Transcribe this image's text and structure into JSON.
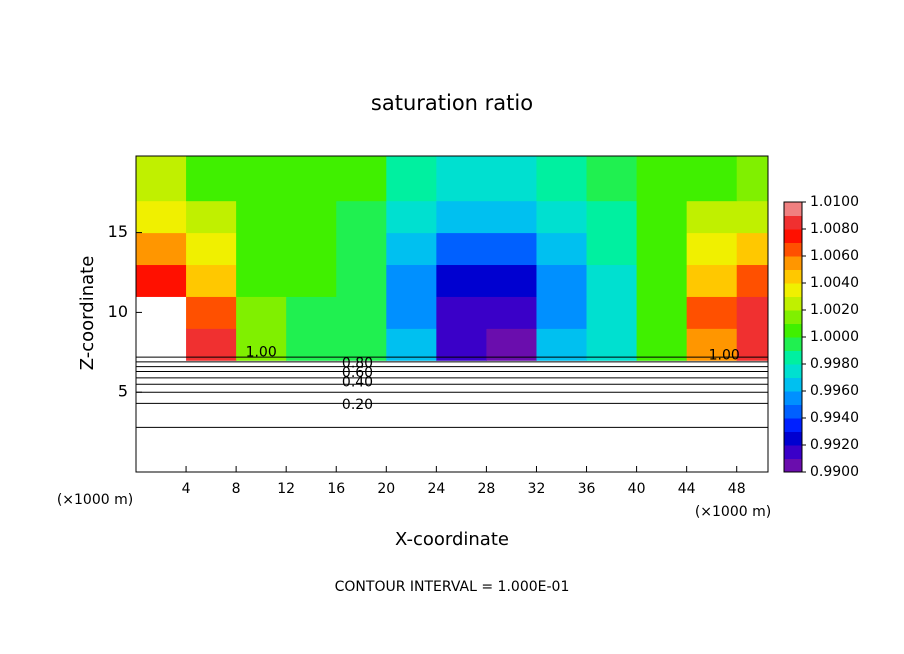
{
  "chart_data": {
    "type": "contour",
    "title": "saturation ratio",
    "xlabel": "X-coordinate",
    "ylabel": "Z-coordinate",
    "x_unit": "(×1000 m)",
    "footer": "CONTOUR INTERVAL = 1.000E-01",
    "xlim": [
      0,
      50.5
    ],
    "ylim": [
      0,
      19.8
    ],
    "xticks": [
      4,
      8,
      12,
      16,
      20,
      24,
      28,
      32,
      36,
      40,
      44,
      48
    ],
    "yticks": [
      5,
      10,
      15
    ],
    "x": [
      2,
      6,
      10,
      14,
      18,
      22,
      26,
      30,
      34,
      38,
      42,
      46,
      50
    ],
    "z": [
      8,
      10,
      12,
      14,
      16,
      18
    ],
    "values": [
      [
        null,
        1.008,
        1.0012,
        0.9996,
        0.999,
        0.9965,
        0.991,
        0.9905,
        0.996,
        0.9975,
        1.0003,
        1.0055,
        1.0085
      ],
      [
        null,
        1.007,
        1.0015,
        0.9998,
        0.999,
        0.9955,
        0.9915,
        0.991,
        0.995,
        0.997,
        1.0005,
        1.0065,
        1.008
      ],
      [
        1.0075,
        1.005,
        1.001,
        1.0,
        0.9992,
        0.9955,
        0.9925,
        0.9925,
        0.995,
        0.9975,
        1.0005,
        1.005,
        1.007
      ],
      [
        1.0055,
        1.0035,
        1.0008,
        1.0002,
        0.9995,
        0.996,
        0.9945,
        0.9945,
        0.996,
        0.998,
        1.0005,
        1.0035,
        1.005
      ],
      [
        1.0035,
        1.002,
        1.0005,
        1.0002,
        0.9998,
        0.9975,
        0.996,
        0.9965,
        0.997,
        0.9985,
        1.0005,
        1.002,
        1.003
      ],
      [
        1.002,
        1.001,
        1.0005,
        1.0002,
        1.0,
        0.9985,
        0.9975,
        0.9975,
        0.998,
        0.999,
        1.0005,
        1.001,
        1.0015
      ]
    ],
    "colorbar_lim": [
      0.99,
      1.01
    ],
    "colorbar_ticks": [
      {
        "value": 0.99,
        "label": "0.9900"
      },
      {
        "value": 0.992,
        "label": "0.9920"
      },
      {
        "value": 0.994,
        "label": "0.9940"
      },
      {
        "value": 0.996,
        "label": "0.9960"
      },
      {
        "value": 0.998,
        "label": "0.9980"
      },
      {
        "value": 1.0,
        "label": "1.0000"
      },
      {
        "value": 1.002,
        "label": "1.0020"
      },
      {
        "value": 1.004,
        "label": "1.0040"
      },
      {
        "value": 1.006,
        "label": "1.0060"
      },
      {
        "value": 1.008,
        "label": "1.0080"
      },
      {
        "value": 1.01,
        "label": "1.0100"
      }
    ],
    "colors": [
      "#6a0dad",
      "#3a00c8",
      "#0000d0",
      "#0020ff",
      "#0060ff",
      "#0090ff",
      "#00c0f0",
      "#00e0d0",
      "#00f0a0",
      "#20f050",
      "#40f000",
      "#80f000",
      "#c0f000",
      "#f0f000",
      "#ffc800",
      "#ff9600",
      "#ff5000",
      "#ff1000",
      "#f03030",
      "#f08080"
    ],
    "contours": [
      {
        "level": 0.1,
        "z": 2.8
      },
      {
        "level": 0.2,
        "z": 4.3
      },
      {
        "level": 0.3,
        "z": 5.0
      },
      {
        "level": 0.4,
        "z": 5.5
      },
      {
        "level": 0.5,
        "z": 5.9
      },
      {
        "level": 0.6,
        "z": 6.3
      },
      {
        "level": 0.7,
        "z": 6.6
      },
      {
        "level": 0.8,
        "z": 6.9
      },
      {
        "level": 0.9,
        "z": 7.2
      }
    ],
    "contour_labels": [
      {
        "value": 0.2,
        "label": "0.20",
        "x": 17.7,
        "z": 4.2
      },
      {
        "value": 0.4,
        "label": "0.40",
        "x": 17.7,
        "z": 5.6
      },
      {
        "value": 0.6,
        "label": "0.60",
        "x": 17.7,
        "z": 6.2
      },
      {
        "value": 0.8,
        "label": "0.80",
        "x": 17.7,
        "z": 6.8
      },
      {
        "value": 1.0,
        "label": "1.00",
        "x": 10.0,
        "z": 7.5
      },
      {
        "value": 1.0,
        "label": "1.00",
        "x": 47.0,
        "z": 7.3
      }
    ]
  }
}
